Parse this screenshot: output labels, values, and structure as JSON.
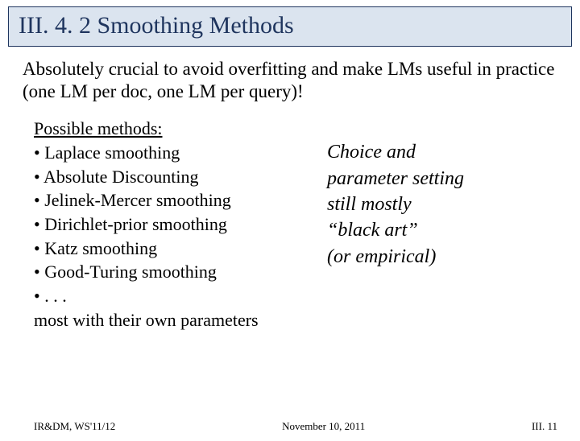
{
  "title": "III. 4. 2 Smoothing Methods",
  "intro": "Absolutely crucial to avoid overfitting and make LMs useful in practice (one LM per doc, one LM per query)!",
  "methods": {
    "heading": "Possible methods:",
    "items": [
      "Laplace smoothing",
      "Absolute Discounting",
      "Jelinek-Mercer smoothing",
      "Dirichlet-prior smoothing",
      "Katz smoothing",
      "Good-Turing smoothing",
      ". . ."
    ],
    "closing": "most with their own parameters"
  },
  "choice": {
    "line1": "Choice and",
    "line2": "parameter setting",
    "line3": "still mostly",
    "line4": "“black art”",
    "line5": "(or empirical)"
  },
  "footer": {
    "left": "IR&DM, WS'11/12",
    "center": "November 10, 2011",
    "right": "III. 11"
  },
  "colors": {
    "title_bg": "#dbe4ef",
    "title_border": "#1f355e",
    "title_text": "#1f355e",
    "body_text": "#000000",
    "background": "#ffffff"
  }
}
